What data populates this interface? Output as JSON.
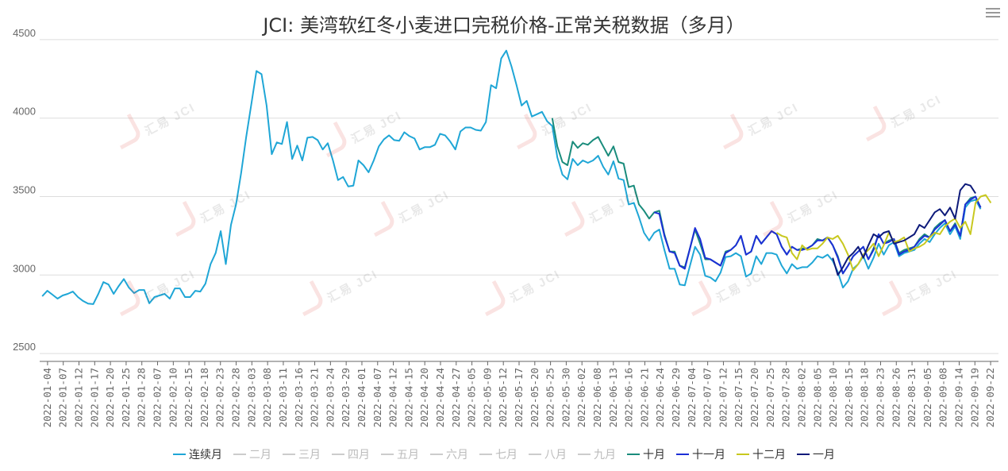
{
  "title": "JCI: 美湾软红冬小麦进口完税价格-正常关税数据（多月）",
  "menu_icon": "hamburger-menu-icon",
  "chart_data": {
    "type": "line",
    "title": "JCI: 美湾软红冬小麦进口完税价格-正常关税数据（多月）",
    "xlabel": "",
    "ylabel": "",
    "ylim": [
      2450,
      4550
    ],
    "yticks": [
      2500,
      3000,
      3500,
      4000,
      4500
    ],
    "grid": "horizontal",
    "legend_position": "bottom",
    "x_tick_labels": [
      "2022-01-04",
      "2022-01-07",
      "2022-01-12",
      "2022-01-17",
      "2022-01-20",
      "2022-01-25",
      "2022-01-28",
      "2022-02-07",
      "2022-02-10",
      "2022-02-15",
      "2022-02-18",
      "2022-02-23",
      "2022-02-28",
      "2022-03-03",
      "2022-03-08",
      "2022-03-11",
      "2022-03-16",
      "2022-03-21",
      "2022-03-24",
      "2022-03-29",
      "2022-04-01",
      "2022-04-07",
      "2022-04-12",
      "2022-04-15",
      "2022-04-20",
      "2022-04-24",
      "2022-04-27",
      "2022-05-05",
      "2022-05-09",
      "2022-05-12",
      "2022-05-17",
      "2022-05-20",
      "2022-05-25",
      "2022-05-30",
      "2022-06-02",
      "2022-06-08",
      "2022-06-13",
      "2022-06-16",
      "2022-06-21",
      "2022-06-24",
      "2022-06-29",
      "2022-07-04",
      "2022-07-07",
      "2022-07-12",
      "2022-07-15",
      "2022-07-20",
      "2022-07-25",
      "2022-07-28",
      "2022-08-02",
      "2022-08-05",
      "2022-08-10",
      "2022-08-15",
      "2022-08-18",
      "2022-08-23",
      "2022-08-26",
      "2022-08-31",
      "2022-09-05",
      "2022-09-08",
      "2022-09-14",
      "2022-09-19",
      "2022-09-22"
    ],
    "n_points": 188,
    "series": [
      {
        "name": "连续月",
        "color": "#1fa6d6",
        "start": 0,
        "values": [
          2865,
          2900,
          2875,
          2850,
          2870,
          2880,
          2895,
          2860,
          2835,
          2818,
          2815,
          2880,
          2955,
          2940,
          2880,
          2930,
          2975,
          2920,
          2885,
          2905,
          2905,
          2820,
          2860,
          2870,
          2880,
          2850,
          2915,
          2915,
          2860,
          2860,
          2900,
          2895,
          2945,
          3070,
          3140,
          3280,
          3070,
          3320,
          3450,
          3650,
          3880,
          4090,
          4300,
          4280,
          4080,
          3770,
          3845,
          3835,
          3975,
          3740,
          3825,
          3730,
          3875,
          3880,
          3860,
          3800,
          3840,
          3730,
          3605,
          3625,
          3565,
          3570,
          3730,
          3700,
          3655,
          3730,
          3820,
          3865,
          3890,
          3860,
          3855,
          3910,
          3885,
          3870,
          3800,
          3815,
          3815,
          3830,
          3900,
          3890,
          3850,
          3800,
          3915,
          3940,
          3940,
          3925,
          3920,
          3975,
          4210,
          4190,
          4380,
          4430,
          4330,
          4210,
          4080,
          4110,
          4010,
          4025,
          4040,
          3980,
          3950,
          3750,
          3640,
          3610,
          3740,
          3700,
          3730,
          3715,
          3730,
          3760,
          3690,
          3640,
          3725,
          3615,
          3605,
          3450,
          3460,
          3370,
          3270,
          3220,
          3270,
          3290,
          3160,
          3040,
          3040,
          2940,
          2935,
          3060,
          3180,
          3130,
          2995,
          2985,
          2960,
          3015,
          3115,
          3120,
          3140,
          3120,
          2990,
          3010,
          3120,
          3070,
          3140,
          3140,
          3130,
          3060,
          3010,
          3070,
          3040,
          3050,
          3050,
          3080,
          3120,
          3110,
          3130,
          3090,
          3020,
          2920,
          2960,
          3040,
          3070,
          3120,
          3040,
          3110,
          3200,
          3130,
          3190,
          3210,
          3120,
          3140,
          3150,
          3160,
          3200,
          3230,
          3210,
          3260,
          3300,
          3330,
          3260,
          3310,
          3230,
          3430,
          3470,
          3480,
          3420
        ]
      },
      {
        "name": "二月",
        "color": "#cccccc",
        "start": 0,
        "values": []
      },
      {
        "name": "三月",
        "color": "#cccccc",
        "start": 0,
        "values": []
      },
      {
        "name": "四月",
        "color": "#cccccc",
        "start": 0,
        "values": []
      },
      {
        "name": "五月",
        "color": "#cccccc",
        "start": 0,
        "values": []
      },
      {
        "name": "六月",
        "color": "#cccccc",
        "start": 0,
        "values": []
      },
      {
        "name": "七月",
        "color": "#cccccc",
        "start": 0,
        "values": []
      },
      {
        "name": "八月",
        "color": "#cccccc",
        "start": 0,
        "values": []
      },
      {
        "name": "九月",
        "color": "#cccccc",
        "start": 0,
        "values": []
      },
      {
        "name": "十月",
        "color": "#1a8c7c",
        "start": 100,
        "values": [
          4000,
          3820,
          3720,
          3700,
          3850,
          3810,
          3840,
          3830,
          3860,
          3880,
          3820,
          3760,
          3820,
          3720,
          3710,
          3560,
          3570,
          3450,
          3410,
          3360,
          3400,
          3410,
          3260,
          3150,
          3150,
          3060,
          3050,
          3170,
          3290,
          3200,
          3100,
          3100,
          3080,
          3060,
          3150,
          3160,
          3190,
          3250,
          3130,
          3150,
          3250,
          3200,
          3240,
          3280,
          3260,
          3180,
          3130,
          3180,
          3160,
          3170,
          3170,
          3190,
          3230,
          3220,
          3240,
          3190,
          3120,
          3010,
          3060,
          3120,
          3150,
          3180,
          3100,
          3170,
          3260,
          3200,
          3220,
          3230,
          3140,
          3160,
          3170,
          3180,
          3230,
          3260,
          3240,
          3300,
          3330,
          3350,
          3280,
          3330,
          3250,
          3450,
          3490,
          3500,
          3430
        ]
      },
      {
        "name": "十一月",
        "color": "#1c2fd6",
        "start": 120,
        "values": [
          3400,
          3390,
          3250,
          3150,
          3140,
          3060,
          3040,
          3170,
          3300,
          3230,
          3110,
          3100,
          3080,
          3060,
          3140,
          3160,
          3190,
          3250,
          3130,
          3150,
          3250,
          3200,
          3240,
          3280,
          3260,
          3180,
          3130,
          3180,
          3160,
          3160,
          3170,
          3190,
          3220,
          3220,
          3240,
          3190,
          3110,
          3010,
          3060,
          3120,
          3150,
          3180,
          3100,
          3160,
          3260,
          3200,
          3210,
          3230,
          3130,
          3150,
          3160,
          3180,
          3220,
          3250,
          3240,
          3290,
          3320,
          3350,
          3280,
          3320,
          3250,
          3450,
          3480,
          3500,
          3430
        ]
      },
      {
        "name": "十二月",
        "color": "#c8c81e",
        "start": 144,
        "values": [
          3270,
          3250,
          3240,
          3140,
          3100,
          3190,
          3160,
          3170,
          3170,
          3200,
          3240,
          3230,
          3250,
          3200,
          3130,
          3030,
          3070,
          3130,
          3160,
          3200,
          3120,
          3190,
          3270,
          3210,
          3220,
          3240,
          3150,
          3170,
          3180,
          3200,
          3240,
          3270,
          3260,
          3310,
          3340,
          3360,
          3300,
          3340,
          3260,
          3460,
          3500,
          3510,
          3460
        ]
      },
      {
        "name": "一月",
        "color": "#0d1a7a",
        "start": 155,
        "values": [
          3110,
          3000,
          3050,
          3110,
          3140,
          3180,
          3110,
          3190,
          3260,
          3240,
          3270,
          3280,
          3200,
          3210,
          3220,
          3240,
          3260,
          3320,
          3300,
          3350,
          3400,
          3420,
          3380,
          3430,
          3360,
          3540,
          3580,
          3570,
          3520
        ]
      }
    ]
  },
  "watermark_text": "汇易 JCI"
}
